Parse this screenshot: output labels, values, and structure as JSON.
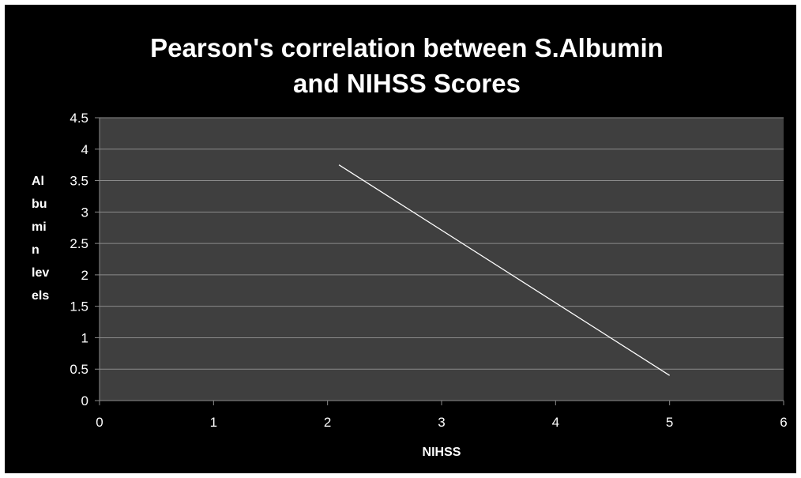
{
  "chart_data": {
    "type": "line",
    "title_line1": "Pearson's correlation between S.Albumin",
    "title_line2": "and NIHSS Scores",
    "xlabel": "NIHSS",
    "ylabel_lines": [
      "Al",
      "bu",
      "mi",
      "n",
      "lev",
      "els"
    ],
    "xlim": [
      0,
      6
    ],
    "ylim": [
      0,
      4.5
    ],
    "x_ticks": [
      "0",
      "1",
      "2",
      "3",
      "4",
      "5",
      "6"
    ],
    "y_ticks": [
      "0",
      "0.5",
      "1",
      "1.5",
      "2",
      "2.5",
      "3",
      "3.5",
      "4",
      "4.5"
    ],
    "grid": true,
    "series": [
      {
        "x": [
          2.1,
          5.0
        ],
        "y": [
          3.75,
          0.4
        ]
      }
    ],
    "colors": {
      "background": "#000000",
      "plot_area": "#3f3f3f",
      "gridline": "#8a8a8a",
      "line": "#ffffff",
      "text": "#ffffff"
    }
  }
}
